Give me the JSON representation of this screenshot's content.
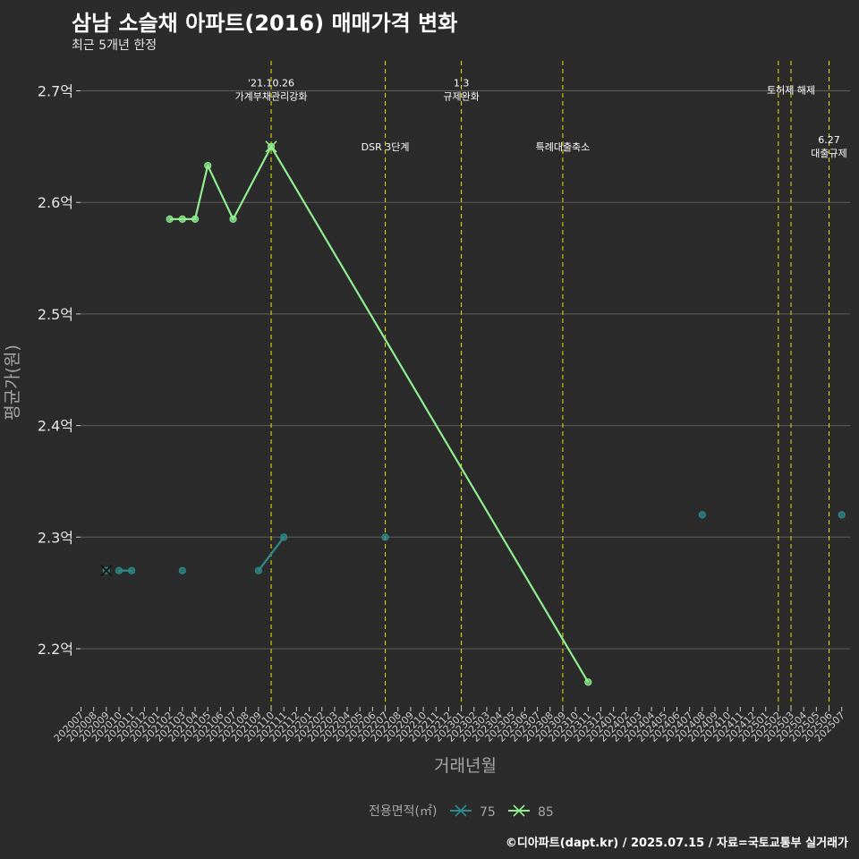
{
  "title": "삼남 소슬채 아파트(2016) 매매가격 변화",
  "subtitle": "최근 5개년 한정",
  "caption": "©디아파트(dapt.kr) / 2025.07.15 / 자료=국토교통부 실거래가",
  "colors": {
    "background": "#2b2b2b",
    "grid": "#5e5e5e",
    "series_75": "#2e8b8b",
    "series_85": "#90ee90",
    "event_line": "#e6e600"
  },
  "chart_data": {
    "type": "line",
    "xlabel": "거래년월",
    "ylabel": "평균가(원)",
    "y_unit": "억",
    "ylim": [
      2.15,
      2.72
    ],
    "yticks": [
      2.2,
      2.3,
      2.4,
      2.5,
      2.6,
      2.7
    ],
    "ytick_labels": [
      "2.2억",
      "2.3억",
      "2.4억",
      "2.5억",
      "2.6억",
      "2.7억"
    ],
    "categories": [
      "202007",
      "202008",
      "202009",
      "202010",
      "202011",
      "202012",
      "202101",
      "202102",
      "202103",
      "202104",
      "202105",
      "202106",
      "202107",
      "202108",
      "202109",
      "202110",
      "202111",
      "202112",
      "202201",
      "202202",
      "202203",
      "202204",
      "202205",
      "202206",
      "202207",
      "202208",
      "202209",
      "202210",
      "202211",
      "202212",
      "202301",
      "202302",
      "202303",
      "202304",
      "202305",
      "202306",
      "202307",
      "202308",
      "202309",
      "202310",
      "202311",
      "202312",
      "202401",
      "202402",
      "202403",
      "202404",
      "202405",
      "202406",
      "202407",
      "202408",
      "202409",
      "202410",
      "202411",
      "202412",
      "202501",
      "202502",
      "202503",
      "202504",
      "202505",
      "202506",
      "202507"
    ],
    "legend": {
      "title": "전용면적(㎡)",
      "position": "bottom"
    },
    "series": [
      {
        "name": "75",
        "color": "#2e8b8b",
        "points": [
          {
            "x": "202009",
            "y": 2.27
          },
          {
            "x": "202010",
            "y": 2.27
          },
          {
            "x": "202011",
            "y": 2.27
          },
          {
            "x": "202103",
            "y": 2.27
          },
          {
            "x": "202109",
            "y": 2.27
          },
          {
            "x": "202111",
            "y": 2.3
          },
          {
            "x": "202207",
            "y": 2.3
          },
          {
            "x": "202408",
            "y": 2.32
          },
          {
            "x": "202507",
            "y": 2.32
          }
        ],
        "segments": [
          [
            "202010",
            "202011"
          ],
          [
            "202109",
            "202111"
          ]
        ],
        "marker_x": [
          "202009"
        ]
      },
      {
        "name": "85",
        "color": "#90ee90",
        "points": [
          {
            "x": "202102",
            "y": 2.585
          },
          {
            "x": "202103",
            "y": 2.585
          },
          {
            "x": "202104",
            "y": 2.585
          },
          {
            "x": "202105",
            "y": 2.633
          },
          {
            "x": "202107",
            "y": 2.585
          },
          {
            "x": "202110",
            "y": 2.65
          },
          {
            "x": "202311",
            "y": 2.17
          }
        ],
        "segments": [
          [
            "202102",
            "202103",
            "202104",
            "202105",
            "202107",
            "202110",
            "202311"
          ]
        ],
        "marker_x": [
          "202110"
        ]
      }
    ],
    "annotations": [
      {
        "x": "202110",
        "lines": [
          "'21.10.26",
          "가계부채관리강화"
        ],
        "y": 2.7
      },
      {
        "x": "202207",
        "lines": [
          "DSR 3단계"
        ],
        "y": 2.649
      },
      {
        "x": "202301",
        "lines": [
          "1.3",
          "규제완화"
        ],
        "y": 2.7
      },
      {
        "x": "202309",
        "lines": [
          "특례대출축소"
        ],
        "y": 2.649
      },
      {
        "x": "202503",
        "lines": [
          "토허제 해제"
        ],
        "y": 2.7
      },
      {
        "x": "202506",
        "lines": [
          "6.27",
          "대출규제"
        ],
        "y": 2.649
      }
    ],
    "event_lines_x": [
      "202110",
      "202207",
      "202301",
      "202309",
      "202502",
      "202503",
      "202506"
    ]
  }
}
